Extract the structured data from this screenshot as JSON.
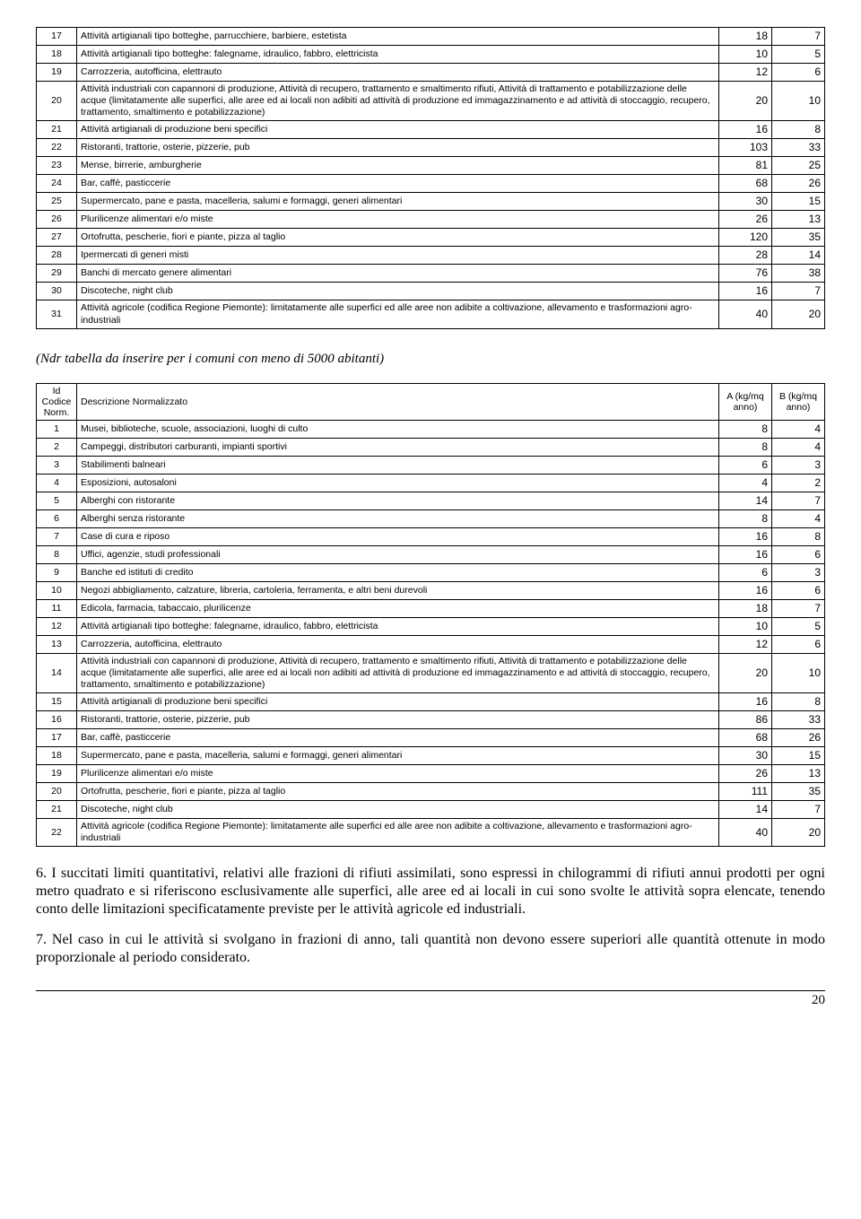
{
  "table1": {
    "rows": [
      {
        "n": "17",
        "d": "Attività artigianali tipo botteghe, parrucchiere, barbiere, estetista",
        "a": "18",
        "b": "7"
      },
      {
        "n": "18",
        "d": "Attività artigianali tipo botteghe: falegname, idraulico, fabbro, elettricista",
        "a": "10",
        "b": "5"
      },
      {
        "n": "19",
        "d": "Carrozzeria, autofficina, elettrauto",
        "a": "12",
        "b": "6"
      },
      {
        "n": "20",
        "d": "Attività industriali con capannoni di produzione, Attività di recupero, trattamento e smaltimento rifiuti, Attività di trattamento e potabilizzazione delle acque (limitatamente alle superfici, alle aree ed ai locali non adibiti ad attività di produzione ed immagazzinamento e ad attività di stoccaggio, recupero, trattamento, smaltimento e potabilizzazione)",
        "a": "20",
        "b": "10"
      },
      {
        "n": "21",
        "d": "Attività artigianali di produzione beni specifici",
        "a": "16",
        "b": "8"
      },
      {
        "n": "22",
        "d": "Ristoranti, trattorie, osterie, pizzerie, pub",
        "a": "103",
        "b": "33"
      },
      {
        "n": "23",
        "d": "Mense, birrerie, amburgherie",
        "a": "81",
        "b": "25"
      },
      {
        "n": "24",
        "d": "Bar, caffè, pasticcerie",
        "a": "68",
        "b": "26"
      },
      {
        "n": "25",
        "d": "Supermercato, pane e pasta, macelleria, salumi e formaggi, generi alimentari",
        "a": "30",
        "b": "15"
      },
      {
        "n": "26",
        "d": "Plurilicenze alimentari e/o miste",
        "a": "26",
        "b": "13"
      },
      {
        "n": "27",
        "d": "Ortofrutta, pescherie, fiori e piante, pizza al taglio",
        "a": "120",
        "b": "35"
      },
      {
        "n": "28",
        "d": "Ipermercati di generi misti",
        "a": "28",
        "b": "14"
      },
      {
        "n": "29",
        "d": "Banchi di mercato genere alimentari",
        "a": "76",
        "b": "38"
      },
      {
        "n": "30",
        "d": "Discoteche, night club",
        "a": "16",
        "b": "7"
      },
      {
        "n": "31",
        "d": "Attività agricole (codifica Regione Piemonte): limitatamente alle superfici ed alle aree non adibite a coltivazione, allevamento e trasformazioni agro-industriali",
        "a": "40",
        "b": "20"
      }
    ]
  },
  "note": "(Ndr  tabella da inserire per i comuni con meno di 5000 abitanti)",
  "table2": {
    "headers": {
      "c1": "Id Codice Norm.",
      "c2": "Descrizione Normalizzato",
      "c3": "A (kg/mq anno)",
      "c4": "B (kg/mq anno)"
    },
    "rows": [
      {
        "n": "1",
        "d": "Musei, biblioteche, scuole, associazioni, luoghi di culto",
        "a": "8",
        "b": "4"
      },
      {
        "n": "2",
        "d": "Campeggi, distributori carburanti, impianti sportivi",
        "a": "8",
        "b": "4"
      },
      {
        "n": "3",
        "d": "Stabilimenti balneari",
        "a": "6",
        "b": "3"
      },
      {
        "n": "4",
        "d": "Esposizioni, autosaloni",
        "a": "4",
        "b": "2"
      },
      {
        "n": "5",
        "d": "Alberghi con ristorante",
        "a": "14",
        "b": "7"
      },
      {
        "n": "6",
        "d": "Alberghi senza ristorante",
        "a": "8",
        "b": "4"
      },
      {
        "n": "7",
        "d": "Case di cura e riposo",
        "a": "16",
        "b": "8"
      },
      {
        "n": "8",
        "d": "Uffici, agenzie, studi professionali",
        "a": "16",
        "b": "6"
      },
      {
        "n": "9",
        "d": "Banche ed istituti di credito",
        "a": "6",
        "b": "3"
      },
      {
        "n": "10",
        "d": "Negozi abbigliamento, calzature, libreria, cartoleria, ferramenta, e altri beni durevoli",
        "a": "16",
        "b": "6"
      },
      {
        "n": "11",
        "d": "Edicola, farmacia, tabaccaio, plurilicenze",
        "a": "18",
        "b": "7"
      },
      {
        "n": "12",
        "d": "Attività artigianali tipo botteghe: falegname, idraulico, fabbro, elettricista",
        "a": "10",
        "b": "5"
      },
      {
        "n": "13",
        "d": "Carrozzeria, autofficina, elettrauto",
        "a": "12",
        "b": "6"
      },
      {
        "n": "14",
        "d": "Attività industriali con capannoni di produzione, Attività di recupero, trattamento e smaltimento rifiuti, Attività di trattamento e potabilizzazione delle acque (limitatamente alle superfici, alle aree ed ai locali non adibiti ad attività di produzione ed immagazzinamento e ad attività di stoccaggio, recupero, trattamento, smaltimento e potabilizzazione)",
        "a": "20",
        "b": "10"
      },
      {
        "n": "15",
        "d": "Attività artigianali di produzione beni specifici",
        "a": "16",
        "b": "8"
      },
      {
        "n": "16",
        "d": "Ristoranti, trattorie, osterie, pizzerie, pub",
        "a": "86",
        "b": "33"
      },
      {
        "n": "17",
        "d": "Bar, caffè, pasticcerie",
        "a": "68",
        "b": "26"
      },
      {
        "n": "18",
        "d": "Supermercato, pane e pasta, macelleria, salumi e formaggi, generi alimentari",
        "a": "30",
        "b": "15"
      },
      {
        "n": "19",
        "d": "Plurilicenze alimentari e/o miste",
        "a": "26",
        "b": "13"
      },
      {
        "n": "20",
        "d": "Ortofrutta, pescherie, fiori e piante, pizza al taglio",
        "a": "111",
        "b": "35"
      },
      {
        "n": "21",
        "d": "Discoteche, night club",
        "a": "14",
        "b": "7"
      },
      {
        "n": "22",
        "d": "Attività agricole (codifica Regione Piemonte): limitatamente alle superfici ed alle aree non adibite a coltivazione, allevamento e trasformazioni agro-industriali",
        "a": "40",
        "b": "20"
      }
    ]
  },
  "para1": "6. I succitati limiti quantitativi, relativi alle frazioni di rifiuti assimilati, sono espressi in chilogrammi di rifiuti annui prodotti per ogni metro quadrato e si riferiscono esclusivamente alle superfici, alle aree ed ai locali in cui sono svolte le attività sopra elencate, tenendo conto delle limitazioni specificatamente previste per le attività agricole ed industriali.",
  "para2": "7. Nel caso in cui le attività si svolgano in frazioni di anno, tali quantità non devono essere superiori alle quantità ottenute in modo proporzionale al periodo considerato.",
  "pageNumber": "20"
}
